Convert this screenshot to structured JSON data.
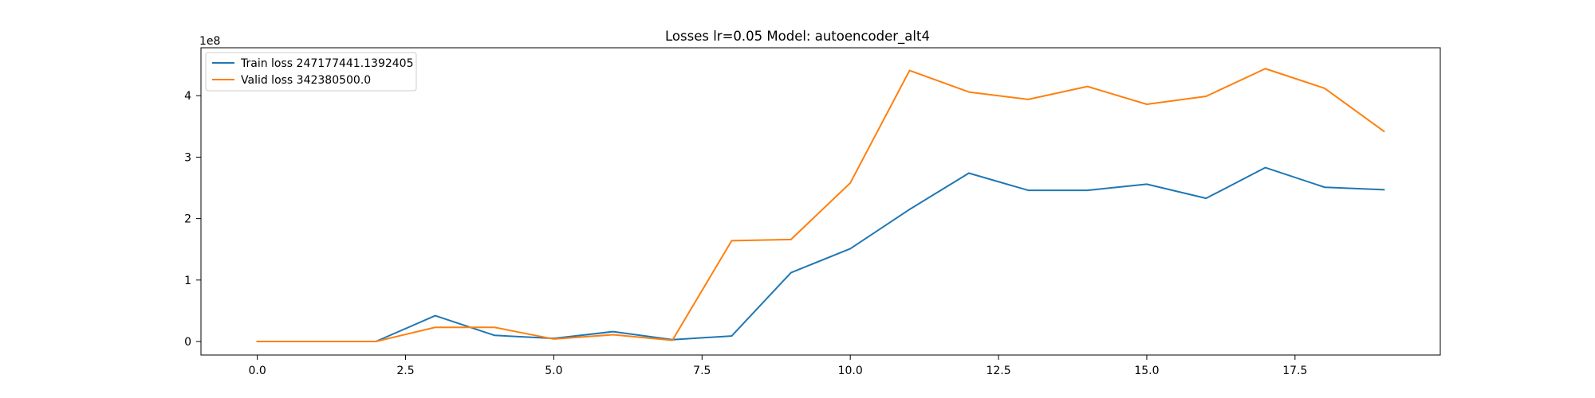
{
  "chart_data": {
    "type": "line",
    "title": "Losses lr=0.05 Model: autoencoder_alt4",
    "xlabel": "",
    "ylabel": "",
    "y_offset_label": "1e8",
    "xlim": [
      -0.95,
      19.95
    ],
    "ylim": [
      -0.22,
      4.78
    ],
    "y_scale_factor": 100000000,
    "grid": false,
    "legend_position": "top-left",
    "x_ticks": [
      0.0,
      2.5,
      5.0,
      7.5,
      10.0,
      12.5,
      15.0,
      17.5
    ],
    "x_tick_labels": [
      "0.0",
      "2.5",
      "5.0",
      "7.5",
      "10.0",
      "12.5",
      "15.0",
      "17.5"
    ],
    "y_ticks": [
      0,
      1,
      2,
      3,
      4
    ],
    "y_tick_labels": [
      "0",
      "1",
      "2",
      "3",
      "4"
    ],
    "x": [
      0,
      1,
      2,
      3,
      4,
      5,
      6,
      7,
      8,
      9,
      10,
      11,
      12,
      13,
      14,
      15,
      16,
      17,
      18,
      19
    ],
    "series": [
      {
        "name": "Train loss 247177441.1392405",
        "color": "#1f77b4",
        "values": [
          0.0,
          0.0,
          0.0,
          0.42,
          0.1,
          0.05,
          0.16,
          0.03,
          0.09,
          1.12,
          1.51,
          2.15,
          2.74,
          2.46,
          2.46,
          2.56,
          2.33,
          2.83,
          2.51,
          2.47
        ]
      },
      {
        "name": "Valid loss 342380500.0",
        "color": "#ff7f0e",
        "values": [
          0.0,
          0.0,
          0.0,
          0.23,
          0.23,
          0.04,
          0.11,
          0.02,
          1.64,
          1.66,
          2.58,
          4.41,
          4.06,
          3.94,
          4.15,
          3.86,
          3.99,
          4.44,
          4.12,
          3.42
        ]
      }
    ]
  }
}
